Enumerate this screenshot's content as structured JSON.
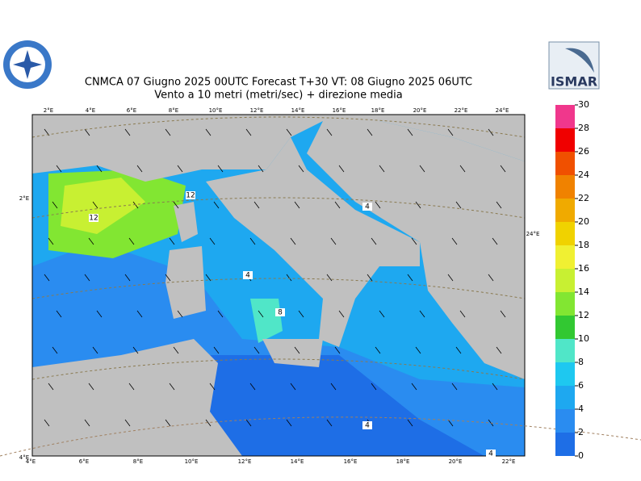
{
  "header": {
    "title_line1": "CNMCA 07   Giugno  2025 00UTC Forecast T+30 VT: 08   Giugno  2025 06UTC",
    "title_line2": "Vento a 10 metri (metri/sec) + direzione media",
    "logo_right": "ISMAR"
  },
  "map": {
    "top_lon_labels": [
      "2°E",
      "4°E",
      "6°E",
      "8°E",
      "10°E",
      "12°E",
      "14°E",
      "16°E",
      "18°E",
      "20°E",
      "22°E",
      "24°E"
    ],
    "bottom_lon_labels": [
      "4°E",
      "6°E",
      "8°E",
      "10°E",
      "12°E",
      "14°E",
      "16°E",
      "18°E",
      "20°E",
      "22°E"
    ],
    "left_label": "2°E",
    "right_label": "24°E",
    "corner_label": "4°E",
    "contour_labels": [
      "12",
      "12",
      "4",
      "4",
      "8",
      "4",
      "4"
    ]
  },
  "colorbar": {
    "ticks": [
      0,
      2,
      4,
      6,
      8,
      10,
      12,
      14,
      16,
      18,
      20,
      22,
      24,
      26,
      28,
      30
    ],
    "colors": [
      "#1e6ee6",
      "#2a8cf0",
      "#1ea8f0",
      "#1ec8f0",
      "#50e6c8",
      "#32c832",
      "#82e632",
      "#c8f032",
      "#f0f032",
      "#f0d200",
      "#f0aa00",
      "#f08200",
      "#f05000",
      "#f00000",
      "#f0378c"
    ]
  }
}
